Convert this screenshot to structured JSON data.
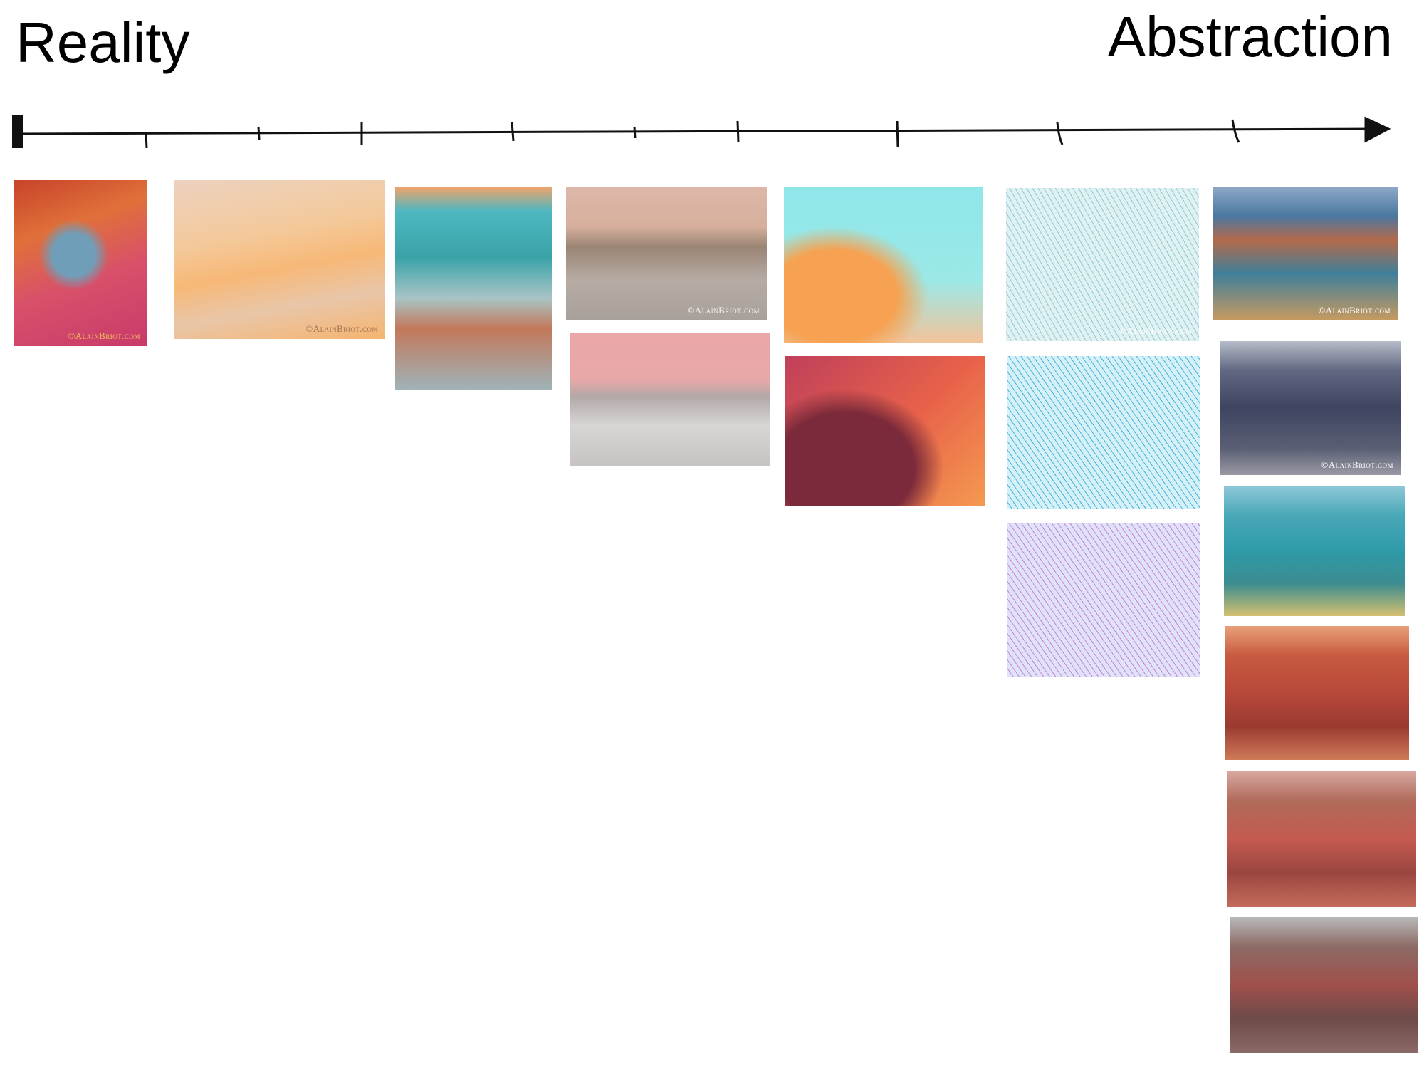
{
  "header": {
    "left": "Reality",
    "right": "Abstraction"
  },
  "watermarks": [
    "©AlainBriot.com",
    "©AlainBriot.com",
    "©AlainBriot.com",
    "©AlainBriot.com",
    "©AlainBriot.com",
    "©AlainBriot.com"
  ]
}
